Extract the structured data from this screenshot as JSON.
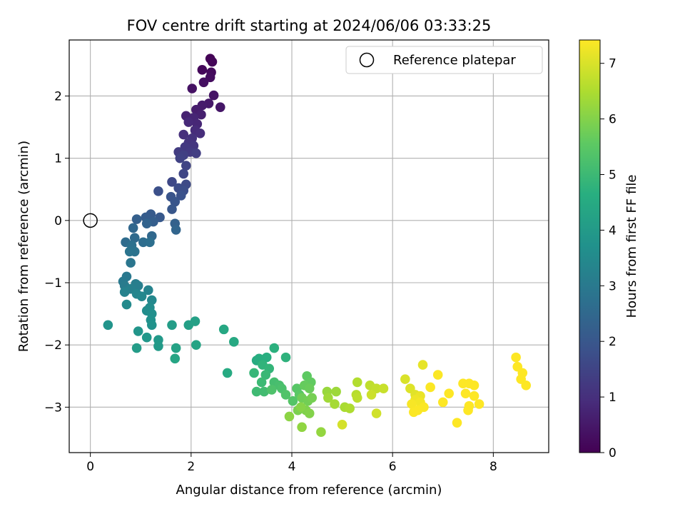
{
  "chart_data": {
    "type": "scatter",
    "title": "FOV centre drift starting at 2024/06/06 03:33:25",
    "xlabel": "Angular distance from reference (arcmin)",
    "ylabel": "Rotation from reference (arcmin)",
    "xlim": [
      -0.42,
      9.1
    ],
    "ylim": [
      -3.73,
      2.9
    ],
    "xticks": [
      0,
      2,
      4,
      6,
      8
    ],
    "yticks": [
      -3,
      -2,
      -1,
      0,
      1,
      2
    ],
    "xtick_labels": [
      "0",
      "2",
      "4",
      "6",
      "8"
    ],
    "ytick_labels": [
      "−3",
      "−2",
      "−1",
      "0",
      "1",
      "2"
    ],
    "grid": true,
    "legend": {
      "placement": "upper right",
      "entries": [
        "Reference platepar"
      ]
    },
    "reference_point": {
      "x": 0,
      "y": 0,
      "label": "Reference platepar"
    },
    "colorbar": {
      "label": "Hours from first FF file",
      "range": [
        0,
        7.42
      ],
      "ticks": [
        0,
        1,
        2,
        3,
        4,
        5,
        6,
        7
      ],
      "tick_labels": [
        "0",
        "1",
        "2",
        "3",
        "4",
        "5",
        "6",
        "7"
      ],
      "colormap": "viridis"
    },
    "points": [
      [
        2.38,
        2.6,
        0.05
      ],
      [
        2.42,
        2.55,
        0.1
      ],
      [
        2.22,
        2.42,
        0.15
      ],
      [
        2.4,
        2.38,
        0.2
      ],
      [
        2.38,
        2.3,
        0.25
      ],
      [
        2.25,
        2.22,
        0.3
      ],
      [
        2.02,
        2.12,
        0.35
      ],
      [
        2.45,
        2.01,
        0.4
      ],
      [
        2.58,
        1.82,
        0.45
      ],
      [
        2.35,
        1.88,
        0.5
      ],
      [
        2.22,
        1.85,
        0.55
      ],
      [
        2.1,
        1.78,
        0.6
      ],
      [
        2.2,
        1.7,
        0.65
      ],
      [
        1.9,
        1.68,
        0.7
      ],
      [
        2.05,
        1.65,
        0.75
      ],
      [
        2.12,
        1.55,
        0.8
      ],
      [
        1.95,
        1.58,
        0.85
      ],
      [
        2.08,
        1.45,
        0.9
      ],
      [
        2.18,
        1.4,
        0.95
      ],
      [
        1.85,
        1.38,
        1.0
      ],
      [
        2.02,
        1.32,
        1.05
      ],
      [
        1.95,
        1.25,
        1.1
      ],
      [
        2.05,
        1.2,
        1.15
      ],
      [
        1.88,
        1.18,
        1.2
      ],
      [
        1.98,
        1.1,
        1.25
      ],
      [
        1.75,
        1.1,
        1.3
      ],
      [
        2.1,
        1.08,
        1.35
      ],
      [
        1.85,
        1.05,
        1.4
      ],
      [
        1.78,
        1.0,
        1.45
      ],
      [
        1.9,
        0.88,
        1.5
      ],
      [
        1.85,
        0.75,
        1.55
      ],
      [
        1.62,
        0.62,
        1.6
      ],
      [
        1.9,
        0.58,
        1.65
      ],
      [
        1.75,
        0.52,
        1.7
      ],
      [
        1.85,
        0.48,
        1.75
      ],
      [
        1.35,
        0.47,
        1.8
      ],
      [
        1.8,
        0.4,
        1.85
      ],
      [
        1.6,
        0.38,
        1.9
      ],
      [
        1.68,
        0.3,
        1.95
      ],
      [
        1.62,
        0.18,
        2.0
      ],
      [
        1.38,
        0.05,
        2.05
      ],
      [
        1.2,
        0.1,
        2.1
      ],
      [
        1.1,
        0.05,
        2.15
      ],
      [
        1.25,
        -0.02,
        2.2
      ],
      [
        0.92,
        0.02,
        2.25
      ],
      [
        1.68,
        -0.05,
        2.3
      ],
      [
        1.12,
        -0.05,
        2.35
      ],
      [
        1.7,
        -0.15,
        2.4
      ],
      [
        0.85,
        -0.12,
        2.45
      ],
      [
        1.22,
        -0.25,
        2.5
      ],
      [
        0.88,
        -0.28,
        2.55
      ],
      [
        0.7,
        -0.35,
        2.6
      ],
      [
        1.05,
        -0.35,
        2.65
      ],
      [
        1.18,
        -0.35,
        2.7
      ],
      [
        0.82,
        -0.4,
        2.75
      ],
      [
        0.88,
        -0.5,
        2.8
      ],
      [
        0.78,
        -0.5,
        2.85
      ],
      [
        0.8,
        -0.68,
        2.9
      ],
      [
        0.72,
        -0.9,
        2.95
      ],
      [
        0.65,
        -0.98,
        3.0
      ],
      [
        0.68,
        -1.05,
        3.05
      ],
      [
        0.9,
        -1.02,
        3.1
      ],
      [
        0.95,
        -1.05,
        3.15
      ],
      [
        0.8,
        -1.1,
        3.2
      ],
      [
        0.68,
        -1.15,
        3.25
      ],
      [
        1.15,
        -1.12,
        3.3
      ],
      [
        0.92,
        -1.18,
        3.35
      ],
      [
        1.02,
        -1.22,
        3.4
      ],
      [
        1.22,
        -1.28,
        3.45
      ],
      [
        0.72,
        -1.35,
        3.5
      ],
      [
        1.18,
        -1.4,
        3.55
      ],
      [
        1.12,
        -1.45,
        3.6
      ],
      [
        1.22,
        -1.5,
        3.65
      ],
      [
        1.2,
        -1.6,
        3.7
      ],
      [
        1.22,
        -1.68,
        3.75
      ],
      [
        0.35,
        -1.68,
        3.8
      ],
      [
        0.95,
        -1.78,
        3.85
      ],
      [
        1.12,
        -1.88,
        3.9
      ],
      [
        1.35,
        -1.92,
        3.95
      ],
      [
        1.35,
        -2.02,
        4.0
      ],
      [
        0.92,
        -2.05,
        4.05
      ],
      [
        1.62,
        -1.68,
        4.1
      ],
      [
        1.95,
        -1.68,
        4.15
      ],
      [
        2.08,
        -1.62,
        4.2
      ],
      [
        1.7,
        -2.05,
        4.25
      ],
      [
        2.1,
        -2.0,
        4.3
      ],
      [
        1.68,
        -2.22,
        4.35
      ],
      [
        2.65,
        -1.75,
        4.4
      ],
      [
        2.85,
        -1.95,
        4.45
      ],
      [
        2.72,
        -2.45,
        4.5
      ],
      [
        3.3,
        -2.25,
        4.55
      ],
      [
        3.35,
        -2.22,
        4.6
      ],
      [
        3.5,
        -2.2,
        4.65
      ],
      [
        3.65,
        -2.05,
        4.7
      ],
      [
        3.88,
        -2.2,
        4.75
      ],
      [
        3.42,
        -2.32,
        4.8
      ],
      [
        3.55,
        -2.38,
        4.85
      ],
      [
        3.25,
        -2.45,
        4.9
      ],
      [
        3.48,
        -2.48,
        4.95
      ],
      [
        3.4,
        -2.6,
        5.0
      ],
      [
        3.3,
        -2.75,
        5.05
      ],
      [
        3.45,
        -2.75,
        5.1
      ],
      [
        3.65,
        -2.6,
        5.15
      ],
      [
        3.75,
        -2.65,
        5.2
      ],
      [
        3.8,
        -2.7,
        5.25
      ],
      [
        3.6,
        -2.72,
        5.3
      ],
      [
        3.88,
        -2.8,
        5.35
      ],
      [
        4.02,
        -2.9,
        5.4
      ],
      [
        4.1,
        -2.7,
        5.45
      ],
      [
        4.15,
        -2.8,
        5.5
      ],
      [
        4.3,
        -2.5,
        5.55
      ],
      [
        4.38,
        -2.6,
        5.6
      ],
      [
        4.25,
        -2.65,
        5.65
      ],
      [
        4.35,
        -2.7,
        5.7
      ],
      [
        4.2,
        -2.85,
        5.75
      ],
      [
        4.32,
        -2.9,
        5.8
      ],
      [
        4.4,
        -2.85,
        5.85
      ],
      [
        4.12,
        -3.05,
        5.9
      ],
      [
        4.28,
        -3.05,
        5.95
      ],
      [
        4.35,
        -3.1,
        6.0
      ],
      [
        4.18,
        -3.0,
        6.05
      ],
      [
        3.95,
        -3.15,
        6.1
      ],
      [
        4.2,
        -3.32,
        6.15
      ],
      [
        4.58,
        -3.4,
        6.2
      ],
      [
        4.7,
        -2.75,
        6.25
      ],
      [
        4.88,
        -2.75,
        6.3
      ],
      [
        4.72,
        -2.85,
        6.35
      ],
      [
        4.85,
        -2.95,
        6.4
      ],
      [
        5.05,
        -3.0,
        6.45
      ],
      [
        5.15,
        -3.02,
        6.5
      ],
      [
        5.3,
        -2.6,
        6.55
      ],
      [
        5.28,
        -2.8,
        6.6
      ],
      [
        5.3,
        -2.85,
        6.65
      ],
      [
        5.55,
        -2.65,
        6.7
      ],
      [
        5.68,
        -2.7,
        6.75
      ],
      [
        5.82,
        -2.7,
        6.8
      ],
      [
        5.58,
        -2.8,
        6.85
      ],
      [
        5.68,
        -3.1,
        6.9
      ],
      [
        5.0,
        -3.28,
        6.95
      ],
      [
        6.25,
        -2.55,
        7.0
      ],
      [
        6.35,
        -2.7,
        7.05
      ],
      [
        6.45,
        -2.8,
        7.1
      ],
      [
        6.6,
        -2.32,
        7.15
      ],
      [
        6.55,
        -2.82,
        7.2
      ],
      [
        6.45,
        -2.88,
        7.25
      ],
      [
        6.55,
        -2.92,
        7.3
      ],
      [
        6.38,
        -2.95,
        7.35
      ],
      [
        6.62,
        -3.0,
        7.38
      ],
      [
        6.5,
        -3.05,
        7.4
      ],
      [
        6.42,
        -3.08,
        7.4
      ],
      [
        6.75,
        -2.68,
        7.4
      ],
      [
        6.9,
        -2.48,
        7.4
      ],
      [
        7.0,
        -2.92,
        7.42
      ],
      [
        7.12,
        -2.78,
        7.42
      ],
      [
        7.28,
        -3.25,
        7.42
      ],
      [
        7.4,
        -2.62,
        7.42
      ],
      [
        7.52,
        -2.62,
        7.42
      ],
      [
        7.62,
        -2.65,
        7.42
      ],
      [
        7.45,
        -2.78,
        7.42
      ],
      [
        7.62,
        -2.82,
        7.42
      ],
      [
        7.52,
        -2.98,
        7.42
      ],
      [
        7.5,
        -3.05,
        7.42
      ],
      [
        7.72,
        -2.95,
        7.42
      ],
      [
        8.45,
        -2.2,
        7.42
      ],
      [
        8.48,
        -2.35,
        7.42
      ],
      [
        8.58,
        -2.45,
        7.42
      ],
      [
        8.55,
        -2.55,
        7.42
      ],
      [
        8.65,
        -2.65,
        7.42
      ]
    ]
  }
}
